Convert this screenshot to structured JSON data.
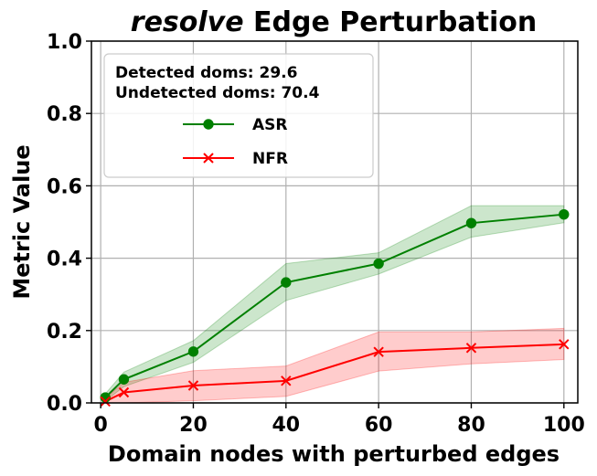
{
  "chart_data": {
    "type": "line",
    "title_emphasis": "resolve",
    "title_rest": " Edge Perturbation",
    "xlabel": "Domain nodes with perturbed edges",
    "ylabel": "Metric Value",
    "xlim": [
      -2,
      103
    ],
    "ylim": [
      0.0,
      1.0
    ],
    "xticks": [
      0,
      20,
      40,
      60,
      80,
      100
    ],
    "xtick_labels": [
      "0",
      "20",
      "40",
      "60",
      "80",
      "100"
    ],
    "yticks": [
      0.0,
      0.2,
      0.4,
      0.6,
      0.8,
      1.0
    ],
    "ytick_labels": [
      "0.0",
      "0.2",
      "0.4",
      "0.6",
      "0.8",
      "1.0"
    ],
    "grid": true,
    "legend_placement": "upper-left",
    "legend_notes": [
      "Detected doms: 29.6",
      "Undetected doms: 70.4"
    ],
    "series": [
      {
        "name": "ASR",
        "color": "#008000",
        "marker": "circle",
        "x": [
          1,
          5,
          20,
          40,
          60,
          80,
          100
        ],
        "y": [
          0.015,
          0.065,
          0.142,
          0.333,
          0.385,
          0.497,
          0.521
        ],
        "lower": [
          0.005,
          0.045,
          0.112,
          0.283,
          0.356,
          0.458,
          0.498
        ],
        "upper": [
          0.025,
          0.085,
          0.172,
          0.385,
          0.415,
          0.545,
          0.545
        ]
      },
      {
        "name": "NFR",
        "color": "#ff0000",
        "marker": "x",
        "x": [
          1,
          5,
          20,
          40,
          60,
          80,
          100
        ],
        "y": [
          0.004,
          0.029,
          0.048,
          0.061,
          0.141,
          0.152,
          0.162
        ],
        "lower": [
          0.0,
          0.0,
          0.006,
          0.018,
          0.088,
          0.108,
          0.12
        ],
        "upper": [
          0.012,
          0.057,
          0.089,
          0.102,
          0.196,
          0.196,
          0.206
        ]
      }
    ]
  }
}
